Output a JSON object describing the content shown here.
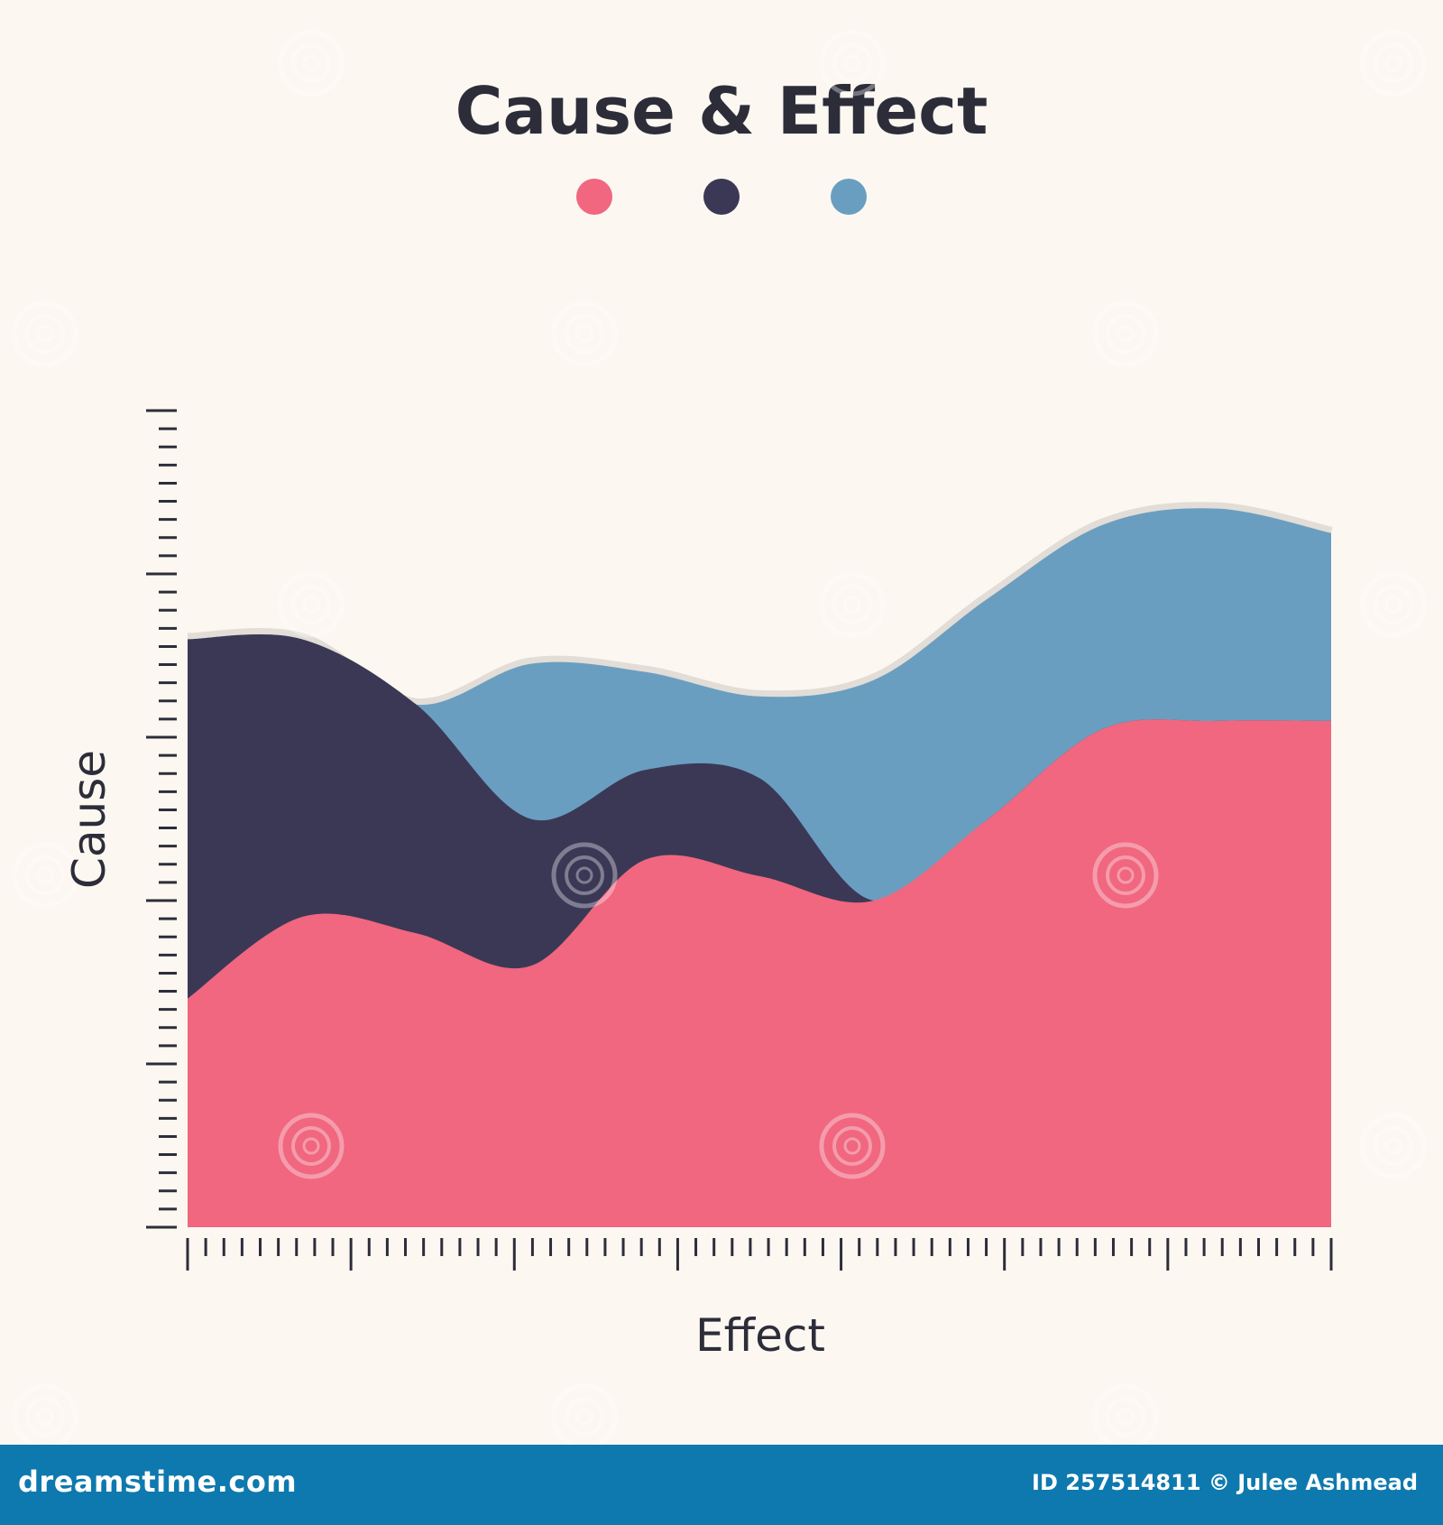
{
  "chart_data": {
    "type": "area",
    "title": "Cause & Effect",
    "xlabel": "Effect",
    "ylabel": "Cause",
    "x": [
      0,
      0.1,
      0.2,
      0.3,
      0.4,
      0.5,
      0.6,
      0.7,
      0.8,
      0.9,
      1.0
    ],
    "ylim": [
      0,
      1
    ],
    "xlim": [
      0,
      1
    ],
    "legend_position": "top-center",
    "series": [
      {
        "color": "#f0677f",
        "values": [
          0.28,
          0.38,
          0.36,
          0.32,
          0.45,
          0.43,
          0.4,
          0.5,
          0.61,
          0.62,
          0.62
        ]
      },
      {
        "color": "#3b3856",
        "values": [
          0.72,
          0.72,
          0.64,
          0.5,
          0.56,
          0.55,
          0.4,
          0.5,
          0.61,
          0.62,
          0.62
        ]
      },
      {
        "color": "#6a9ec0",
        "values": [
          0.72,
          0.72,
          0.64,
          0.69,
          0.68,
          0.65,
          0.67,
          0.77,
          0.86,
          0.88,
          0.85
        ]
      }
    ]
  },
  "footer": {
    "brand": "dreamstime.com",
    "credit": "ID 257514811 © Julee Ashmead"
  },
  "watermark": "dreamstime"
}
